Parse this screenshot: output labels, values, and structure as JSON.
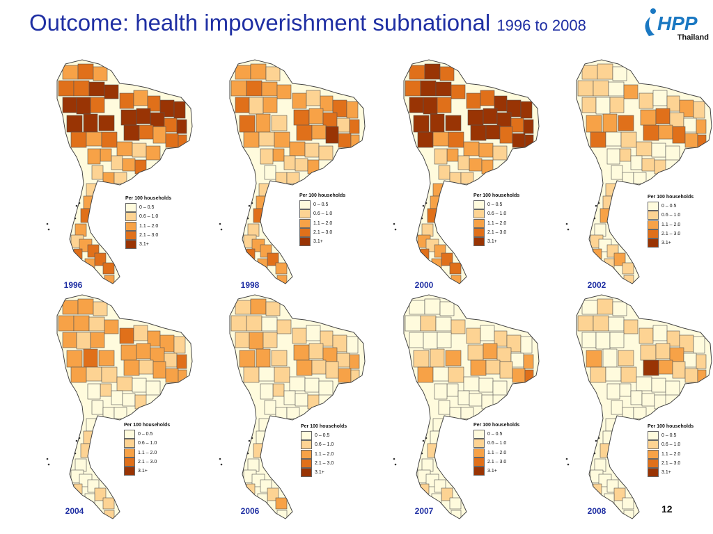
{
  "slide": {
    "title_main": "Outcome: health impoverishment subnational ",
    "title_sub": "1996 to 2008",
    "page_number": "12"
  },
  "logo": {
    "text": "HPP",
    "subtitle": "Thailand",
    "color": "#1a78c2"
  },
  "legend": {
    "title": "Per 100 households",
    "classes": [
      {
        "label": "0 –  0.5",
        "color": "#fffbdd"
      },
      {
        "label": "0.6 – 1.0",
        "color": "#fdd393"
      },
      {
        "label": "1.1 – 2.0",
        "color": "#f7a247"
      },
      {
        "label": "2.1 – 3.0",
        "color": "#e0701a"
      },
      {
        "label": "3.1+",
        "color": "#993404"
      }
    ]
  },
  "maps": [
    {
      "year": "1996",
      "region_classes": [
        2,
        3,
        2,
        3,
        3,
        4,
        4,
        4,
        4,
        3,
        3,
        2,
        3,
        4,
        4,
        4,
        4,
        4,
        3,
        4,
        4,
        3,
        2,
        3,
        3,
        4,
        4,
        4,
        3,
        2,
        3,
        2,
        1,
        2,
        2,
        1,
        2,
        3,
        2,
        1,
        2,
        1,
        1,
        2,
        3,
        2,
        1,
        2,
        3,
        3,
        3,
        2,
        3,
        2,
        2,
        3,
        2,
        2
      ]
    },
    {
      "year": "1998",
      "region_classes": [
        2,
        2,
        1,
        2,
        3,
        2,
        2,
        3,
        1,
        2,
        2,
        1,
        2,
        3,
        2,
        3,
        2,
        3,
        1,
        3,
        3,
        2,
        4,
        3,
        2,
        1,
        2,
        3,
        2,
        1,
        2,
        2,
        1,
        1,
        2,
        1,
        1,
        2,
        1,
        0,
        1,
        1,
        1,
        2,
        3,
        1,
        1,
        2,
        2,
        3,
        2,
        2,
        3,
        2,
        3,
        4,
        2,
        1
      ]
    },
    {
      "year": "2000",
      "region_classes": [
        3,
        4,
        3,
        3,
        4,
        4,
        3,
        4,
        4,
        3,
        3,
        3,
        4,
        4,
        4,
        4,
        4,
        4,
        3,
        4,
        4,
        4,
        3,
        4,
        4,
        4,
        4,
        4,
        4,
        2,
        3,
        2,
        2,
        1,
        2,
        1,
        2,
        2,
        1,
        1,
        1,
        1,
        2,
        2,
        3,
        1,
        2,
        1,
        2,
        3,
        3,
        2,
        3,
        2,
        2,
        3,
        1,
        1
      ]
    },
    {
      "year": "2002",
      "region_classes": [
        1,
        1,
        0,
        1,
        1,
        0,
        2,
        1,
        0,
        1,
        1,
        0,
        1,
        2,
        1,
        2,
        3,
        1,
        0,
        2,
        3,
        2,
        3,
        2,
        3,
        3,
        2,
        2,
        3,
        0,
        1,
        1,
        0,
        0,
        1,
        0,
        1,
        1,
        0,
        0,
        0,
        0,
        1,
        1,
        2,
        0,
        1,
        0,
        1,
        2,
        1,
        1,
        2,
        1,
        1,
        2,
        0,
        0
      ]
    },
    {
      "year": "2004",
      "region_classes": [
        2,
        2,
        1,
        2,
        2,
        1,
        2,
        2,
        1,
        2,
        3,
        1,
        2,
        2,
        1,
        2,
        2,
        2,
        1,
        3,
        2,
        1,
        2,
        2,
        2,
        2,
        3,
        2,
        2,
        1,
        1,
        1,
        0,
        0,
        1,
        0,
        0,
        1,
        0,
        0,
        0,
        0,
        0,
        1,
        1,
        0,
        0,
        0,
        0,
        1,
        1,
        0,
        1,
        1,
        0,
        1,
        0,
        0
      ]
    },
    {
      "year": "2006",
      "region_classes": [
        1,
        2,
        1,
        1,
        1,
        0,
        1,
        1,
        2,
        1,
        1,
        0,
        1,
        1,
        0,
        2,
        1,
        2,
        1,
        2,
        2,
        1,
        1,
        2,
        1,
        1,
        2,
        2,
        1,
        0,
        1,
        0,
        0,
        0,
        1,
        0,
        0,
        1,
        0,
        0,
        0,
        0,
        0,
        0,
        1,
        0,
        0,
        0,
        0,
        1,
        2,
        0,
        1,
        0,
        0,
        1,
        0,
        0
      ]
    },
    {
      "year": "2007",
      "region_classes": [
        0,
        0,
        0,
        0,
        1,
        0,
        1,
        0,
        0,
        0,
        1,
        0,
        1,
        1,
        0,
        1,
        2,
        1,
        0,
        2,
        2,
        1,
        1,
        2,
        3,
        2,
        1,
        1,
        2,
        0,
        1,
        0,
        0,
        0,
        0,
        0,
        0,
        0,
        0,
        0,
        0,
        0,
        0,
        0,
        1,
        0,
        0,
        0,
        0,
        1,
        0,
        0,
        1,
        0,
        0,
        1,
        0,
        0
      ]
    },
    {
      "year": "2008",
      "region_classes": [
        0,
        1,
        0,
        1,
        1,
        0,
        1,
        0,
        0,
        0,
        1,
        0,
        1,
        1,
        0,
        1,
        1,
        2,
        0,
        1,
        4,
        2,
        1,
        1,
        2,
        1,
        0,
        2,
        1,
        0,
        1,
        0,
        0,
        0,
        0,
        0,
        0,
        0,
        0,
        0,
        0,
        0,
        0,
        0,
        1,
        0,
        0,
        0,
        0,
        1,
        0,
        0,
        1,
        0,
        0,
        1,
        0,
        0
      ]
    }
  ]
}
